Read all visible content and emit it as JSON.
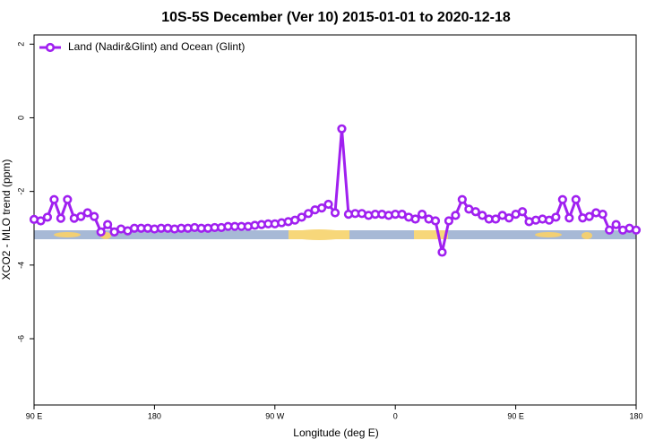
{
  "chart_data": {
    "type": "line",
    "title": "10S-5S December (Ver 10)   2015-01-01 to 2020-12-18",
    "x_label": "Longitude (deg E)",
    "y_label": "XCO2 - MLO trend (ppm)",
    "x": [
      90,
      95,
      100,
      105,
      110,
      115,
      120,
      125,
      130,
      135,
      140,
      145,
      150,
      155,
      160,
      165,
      170,
      175,
      180,
      185,
      190,
      195,
      200,
      205,
      210,
      215,
      220,
      225,
      230,
      235,
      240,
      245,
      250,
      255,
      260,
      265,
      270,
      275,
      280,
      285,
      290,
      295,
      300,
      305,
      310,
      315,
      320,
      325,
      330,
      335,
      340,
      345,
      350,
      355,
      360,
      365,
      370,
      375,
      380,
      385,
      390,
      395,
      400,
      405,
      410,
      415,
      420,
      425,
      430,
      435,
      440,
      445,
      450,
      455,
      460,
      465,
      470,
      475,
      480,
      485,
      490,
      495,
      500,
      505,
      510,
      515,
      520,
      525,
      530,
      535,
      540
    ],
    "series": [
      {
        "name": "Land (Nadir&Glint) and Ocean (Glint)",
        "color": "#a020f0",
        "values": [
          -2.76,
          -2.8,
          -2.7,
          -2.22,
          -2.73,
          -2.22,
          -2.73,
          -2.68,
          -2.58,
          -2.68,
          -3.1,
          -2.9,
          -3.1,
          -3.02,
          -3.07,
          -3.0,
          -3.0,
          -3.0,
          -3.02,
          -3.0,
          -3.0,
          -3.02,
          -3.0,
          -3.0,
          -2.98,
          -3.0,
          -3.0,
          -2.98,
          -2.98,
          -2.95,
          -2.95,
          -2.95,
          -2.95,
          -2.92,
          -2.9,
          -2.88,
          -2.88,
          -2.85,
          -2.82,
          -2.78,
          -2.7,
          -2.6,
          -2.5,
          -2.45,
          -2.35,
          -2.58,
          -0.3,
          -2.62,
          -2.6,
          -2.6,
          -2.65,
          -2.62,
          -2.62,
          -2.65,
          -2.62,
          -2.62,
          -2.7,
          -2.75,
          -2.62,
          -2.75,
          -2.8,
          -3.65,
          -2.8,
          -2.65,
          -2.22,
          -2.48,
          -2.55,
          -2.65,
          -2.75,
          -2.75,
          -2.65,
          -2.72,
          -2.62,
          -2.55,
          -2.82,
          -2.78,
          -2.75,
          -2.78,
          -2.7,
          -2.22,
          -2.72,
          -2.22,
          -2.72,
          -2.68,
          -2.58,
          -2.62,
          -3.05,
          -2.9,
          -3.05,
          -3.0,
          -3.05
        ]
      }
    ],
    "xlim": [
      90,
      540
    ],
    "xticks": [
      {
        "value": 90,
        "label": "90 E"
      },
      180,
      {
        "value": 270,
        "label": "90 W"
      },
      {
        "value": 360,
        "label": "0"
      },
      {
        "value": 450,
        "label": "90 E"
      },
      {
        "value": 540,
        "label": "180"
      }
    ],
    "ylim": [
      -7.8,
      2.25
    ],
    "yticks": [
      2,
      0,
      -2,
      -4,
      -6
    ],
    "legend": "top-left"
  }
}
